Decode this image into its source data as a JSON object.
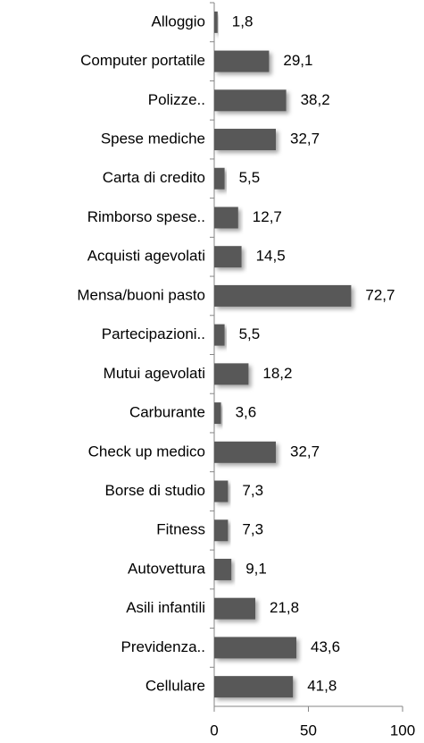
{
  "chart_data": {
    "type": "barh",
    "categories": [
      "Alloggio",
      "Computer portatile",
      "Polizze..",
      "Spese mediche",
      "Carta di credito",
      "Rimborso spese..",
      "Acquisti agevolati",
      "Mensa/buoni pasto",
      "Partecipazioni..",
      "Mutui agevolati",
      "Carburante",
      "Check up medico",
      "Borse di studio",
      "Fitness",
      "Autovettura",
      "Asili infantili",
      "Previdenza..",
      "Cellulare"
    ],
    "values": [
      1.8,
      29.1,
      38.2,
      32.7,
      5.5,
      12.7,
      14.5,
      72.7,
      5.5,
      18.2,
      3.6,
      32.7,
      7.3,
      7.3,
      9.1,
      21.8,
      43.6,
      41.8
    ],
    "value_labels": [
      "1,8",
      "29,1",
      "38,2",
      "32,7",
      "5,5",
      "12,7",
      "14,5",
      "72,7",
      "5,5",
      "18,2",
      "3,6",
      "32,7",
      "7,3",
      "7,3",
      "9,1",
      "21,8",
      "43,6",
      "41,8"
    ],
    "color": "#595959",
    "xlim": [
      0,
      100
    ],
    "xticks": [
      0,
      50,
      100
    ],
    "grid": false
  }
}
